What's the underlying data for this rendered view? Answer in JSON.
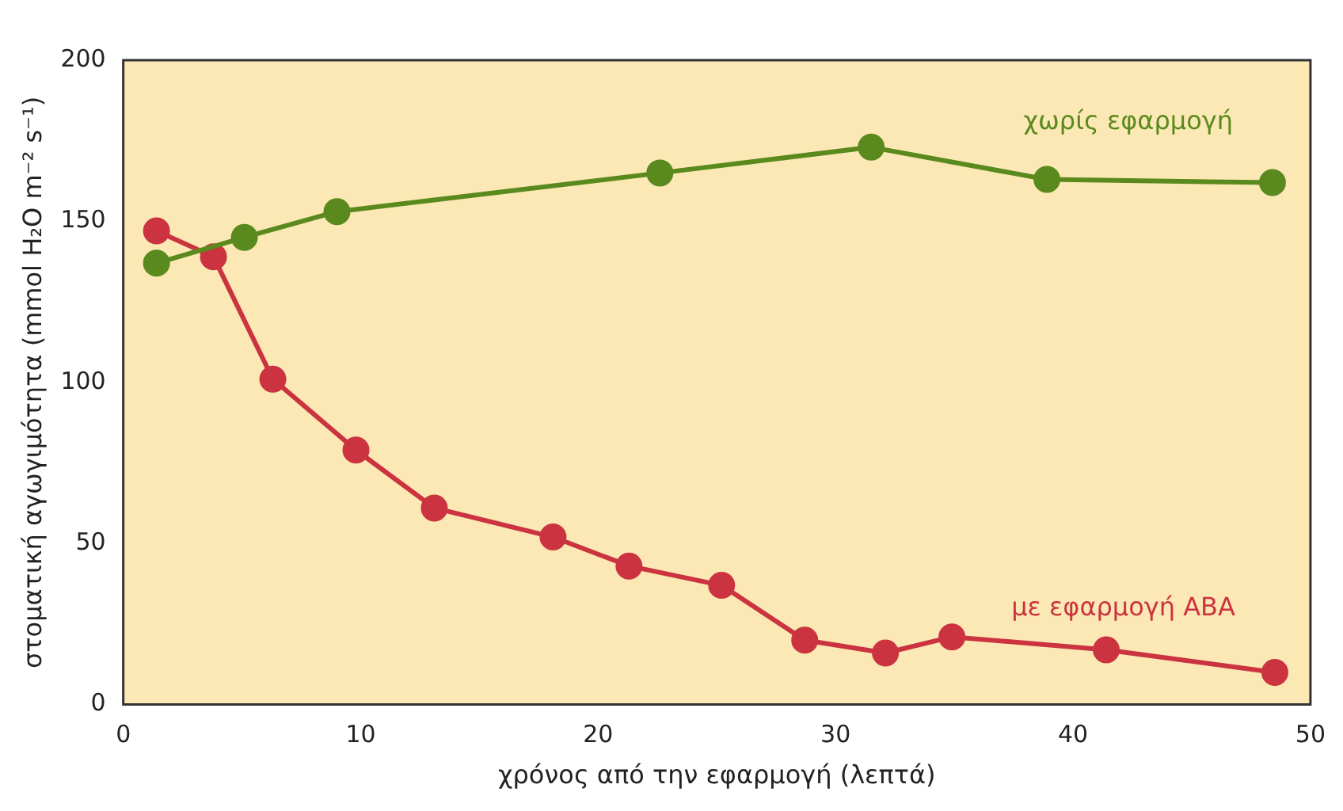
{
  "chart_data": {
    "type": "line",
    "xlabel": "χρόνος από την εφαρμογή (λεπτά)",
    "ylabel": "στοματική αγωγιμότητα (mmol H₂O m⁻² s⁻¹)",
    "xlim": [
      0,
      50
    ],
    "xticks": [
      0,
      10,
      20,
      30,
      40,
      50
    ],
    "ylim": [
      0,
      200
    ],
    "yticks": [
      0,
      50,
      100,
      150,
      200
    ],
    "grid": false,
    "legend": false,
    "marker": "circle",
    "line_style": "solid",
    "series": [
      {
        "name": "χωρίς εφαρμογή",
        "color": "#5a8a1e",
        "x": [
          1.4,
          5.1,
          9,
          22.6,
          31.5,
          38.9,
          48.4
        ],
        "values": [
          137,
          145,
          153,
          165,
          173,
          163,
          162
        ]
      },
      {
        "name": "με εφαρμογή ABA",
        "color": "#cc3340",
        "x": [
          1.4,
          3.8,
          6.3,
          9.8,
          13.1,
          18.1,
          21.3,
          25.2,
          28.7,
          32.1,
          34.9,
          41.4,
          48.5
        ],
        "values": [
          147,
          139,
          101,
          79,
          61,
          52,
          43,
          37,
          20,
          16,
          21,
          17,
          10
        ]
      }
    ]
  }
}
